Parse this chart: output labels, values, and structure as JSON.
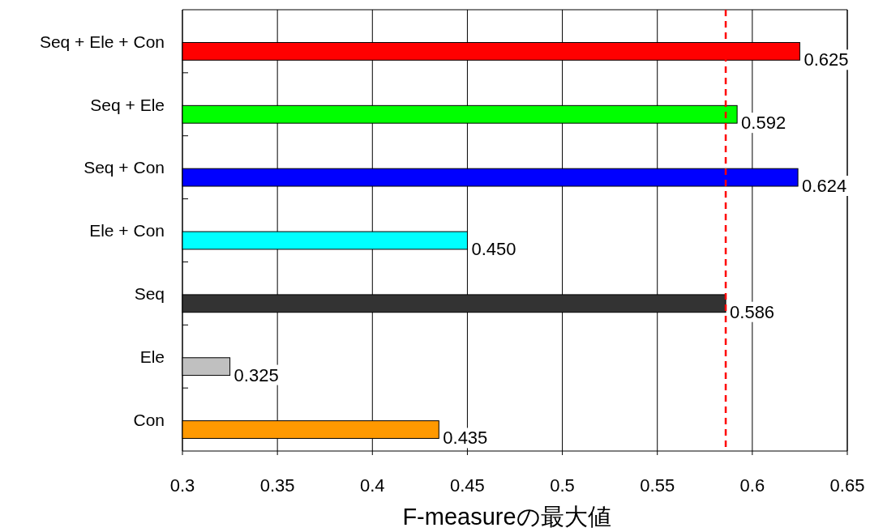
{
  "chart_data": {
    "type": "bar",
    "orientation": "horizontal",
    "xlabel": "F-measureの最大値",
    "categories": [
      "Seq + Ele + Con",
      "Seq + Ele",
      "Seq + Con",
      "Ele + Con",
      "Seq",
      "Ele",
      "Con"
    ],
    "values": [
      0.625,
      0.592,
      0.624,
      0.45,
      0.586,
      0.325,
      0.435
    ],
    "value_labels": [
      "0.625",
      "0.592",
      "0.624",
      "0.450",
      "0.586",
      "0.325",
      "0.435"
    ],
    "colors": [
      "#ff0000",
      "#00ff00",
      "#0000ff",
      "#00ffff",
      "#333333",
      "#c0c0c0",
      "#ff9900"
    ],
    "xlim": [
      0.3,
      0.65
    ],
    "xticks": [
      0.3,
      0.35,
      0.4,
      0.45,
      0.5,
      0.55,
      0.6,
      0.65
    ],
    "grid": "x",
    "ref_lines": [
      {
        "axis": "x",
        "value": 0.586,
        "color": "#ff0000",
        "line_style": "dashed"
      }
    ]
  }
}
